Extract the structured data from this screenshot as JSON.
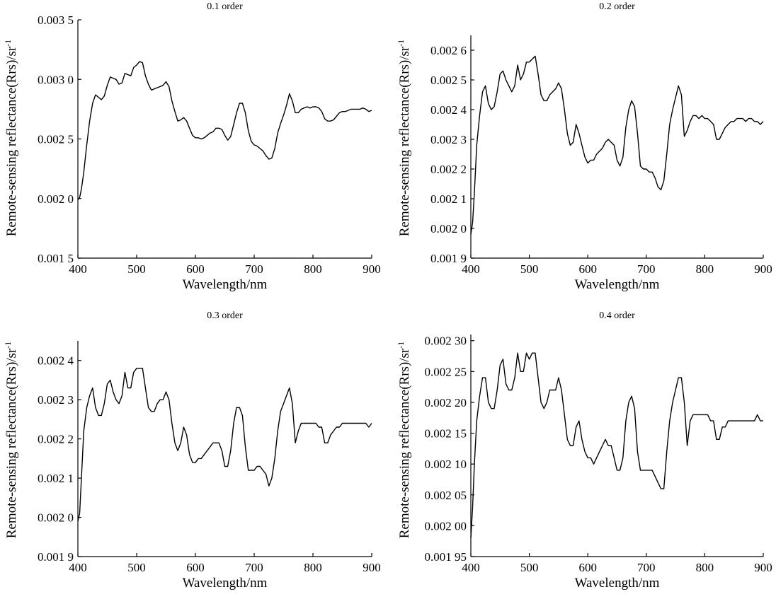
{
  "chart_data": [
    {
      "type": "line",
      "title": "0.1 order",
      "xlabel": "Wavelength/nm",
      "ylabel": "Remote-sensing reflectance(Rrs)/sr",
      "ylabel_sup": "-1",
      "xlim": [
        400,
        900
      ],
      "ylim": [
        0.0015,
        0.0035
      ],
      "xticks": [
        400,
        500,
        600,
        700,
        800,
        900
      ],
      "xtick_labels": [
        "400",
        "500",
        "600",
        "700",
        "800",
        "900"
      ],
      "yticks": [
        0.0015,
        0.002,
        0.0025,
        0.003,
        0.0035
      ],
      "ytick_labels": [
        "0.001 5",
        "0.002 0",
        "0.002 5",
        "0.003 0",
        "0.003 5"
      ],
      "grid": false,
      "series": [
        {
          "x": [
            400,
            403,
            406,
            410,
            415,
            420,
            425,
            430,
            435,
            440,
            445,
            450,
            455,
            460,
            465,
            470,
            475,
            480,
            485,
            490,
            495,
            500,
            505,
            510,
            515,
            520,
            525,
            530,
            535,
            540,
            545,
            550,
            555,
            560,
            565,
            570,
            575,
            580,
            585,
            590,
            595,
            600,
            605,
            610,
            615,
            620,
            625,
            630,
            635,
            640,
            645,
            650,
            655,
            660,
            665,
            670,
            675,
            680,
            685,
            690,
            695,
            700,
            705,
            710,
            715,
            720,
            725,
            730,
            735,
            740,
            745,
            750,
            755,
            760,
            765,
            770,
            775,
            780,
            785,
            790,
            795,
            800,
            805,
            810,
            815,
            820,
            825,
            830,
            835,
            840,
            845,
            850,
            855,
            860,
            865,
            870,
            875,
            880,
            885,
            890,
            895,
            900
          ],
          "y": [
            0.00199,
            0.00201,
            0.00208,
            0.00222,
            0.00245,
            0.00265,
            0.0028,
            0.00287,
            0.00285,
            0.00283,
            0.00286,
            0.00295,
            0.00302,
            0.00301,
            0.003,
            0.00296,
            0.00297,
            0.00305,
            0.00304,
            0.00303,
            0.0031,
            0.00312,
            0.00315,
            0.00314,
            0.00303,
            0.00296,
            0.00291,
            0.00292,
            0.00293,
            0.00294,
            0.00295,
            0.00298,
            0.00294,
            0.00282,
            0.00273,
            0.00265,
            0.00266,
            0.00268,
            0.00265,
            0.00259,
            0.00253,
            0.00251,
            0.00251,
            0.0025,
            0.00251,
            0.00253,
            0.00255,
            0.00256,
            0.00259,
            0.00259,
            0.00258,
            0.00253,
            0.00249,
            0.00252,
            0.00262,
            0.00272,
            0.0028,
            0.0028,
            0.00272,
            0.00257,
            0.00248,
            0.00245,
            0.00244,
            0.00242,
            0.0024,
            0.00236,
            0.00233,
            0.00234,
            0.00242,
            0.00255,
            0.00263,
            0.0027,
            0.00278,
            0.00288,
            0.00282,
            0.00272,
            0.00272,
            0.00275,
            0.00276,
            0.00277,
            0.00276,
            0.00277,
            0.00277,
            0.00276,
            0.00273,
            0.00267,
            0.00265,
            0.00265,
            0.00266,
            0.00269,
            0.00272,
            0.00273,
            0.00273,
            0.00274,
            0.00275,
            0.00275,
            0.00275,
            0.00275,
            0.00276,
            0.00275,
            0.00273,
            0.00274
          ]
        }
      ]
    },
    {
      "type": "line",
      "title": "0.2 order",
      "xlabel": "Wavelength/nm",
      "ylabel": "Remote-sensing reflectance(Rrs)/sr",
      "ylabel_sup": "-1",
      "xlim": [
        400,
        900
      ],
      "ylim": [
        0.0019,
        0.00265
      ],
      "xticks": [
        400,
        500,
        600,
        700,
        800,
        900
      ],
      "xtick_labels": [
        "400",
        "500",
        "600",
        "700",
        "800",
        "900"
      ],
      "yticks": [
        0.0019,
        0.002,
        0.0021,
        0.0022,
        0.0023,
        0.0024,
        0.0025,
        0.0026
      ],
      "ytick_labels": [
        "0.001 9",
        "0.002 0",
        "0.002 1",
        "0.002 2",
        "0.002 3",
        "0.002 4",
        "0.002 5",
        "0.002 6"
      ],
      "grid": false,
      "series": [
        {
          "x": [
            400,
            403,
            406,
            410,
            415,
            420,
            425,
            430,
            435,
            440,
            445,
            450,
            455,
            460,
            465,
            470,
            475,
            480,
            485,
            490,
            495,
            500,
            505,
            510,
            515,
            520,
            525,
            530,
            535,
            540,
            545,
            550,
            555,
            560,
            565,
            570,
            575,
            580,
            585,
            590,
            595,
            600,
            605,
            610,
            615,
            620,
            625,
            630,
            635,
            640,
            645,
            650,
            655,
            660,
            665,
            670,
            675,
            680,
            685,
            690,
            695,
            700,
            705,
            710,
            715,
            720,
            725,
            730,
            735,
            740,
            745,
            750,
            755,
            760,
            765,
            770,
            775,
            780,
            785,
            790,
            795,
            800,
            805,
            810,
            815,
            820,
            825,
            830,
            835,
            840,
            845,
            850,
            855,
            860,
            865,
            870,
            875,
            880,
            885,
            890,
            895,
            900
          ],
          "y": [
            0.00198,
            0.00202,
            0.00212,
            0.00228,
            0.00238,
            0.00246,
            0.00248,
            0.00242,
            0.0024,
            0.00241,
            0.00246,
            0.00252,
            0.00253,
            0.0025,
            0.00248,
            0.00246,
            0.00248,
            0.00255,
            0.0025,
            0.00252,
            0.00256,
            0.00256,
            0.00257,
            0.00258,
            0.00252,
            0.00245,
            0.00243,
            0.00243,
            0.00245,
            0.00246,
            0.00247,
            0.00249,
            0.00247,
            0.0024,
            0.00232,
            0.00228,
            0.00229,
            0.00235,
            0.00232,
            0.00228,
            0.00224,
            0.00222,
            0.00223,
            0.00223,
            0.00225,
            0.00226,
            0.00227,
            0.00229,
            0.0023,
            0.00229,
            0.00228,
            0.00223,
            0.00221,
            0.00224,
            0.00234,
            0.0024,
            0.00243,
            0.00241,
            0.00232,
            0.00221,
            0.0022,
            0.0022,
            0.00219,
            0.00219,
            0.00217,
            0.00214,
            0.00213,
            0.00216,
            0.00225,
            0.00235,
            0.0024,
            0.00244,
            0.00248,
            0.00245,
            0.00231,
            0.00233,
            0.00236,
            0.00238,
            0.00238,
            0.00237,
            0.00238,
            0.00237,
            0.00237,
            0.00236,
            0.00235,
            0.0023,
            0.0023,
            0.00232,
            0.00234,
            0.00235,
            0.00236,
            0.00236,
            0.00237,
            0.00237,
            0.00237,
            0.00236,
            0.00237,
            0.00237,
            0.00236,
            0.00236,
            0.00235,
            0.00236
          ]
        }
      ]
    },
    {
      "type": "line",
      "title": "0.3 order",
      "xlabel": "Wavelength/nm",
      "ylabel": "Remote-sensing reflectance(Rrs)/sr",
      "ylabel_sup": "-1",
      "xlim": [
        400,
        900
      ],
      "ylim": [
        0.0019,
        0.00245
      ],
      "xticks": [
        400,
        500,
        600,
        700,
        800,
        900
      ],
      "xtick_labels": [
        "400",
        "500",
        "600",
        "700",
        "800",
        "900"
      ],
      "yticks": [
        0.0019,
        0.002,
        0.0021,
        0.0022,
        0.0023,
        0.0024
      ],
      "ytick_labels": [
        "0.001 9",
        "0.002 0",
        "0.002 1",
        "0.002 2",
        "0.002 3",
        "0.002 4"
      ],
      "grid": false,
      "series": [
        {
          "x": [
            400,
            403,
            406,
            410,
            415,
            420,
            425,
            430,
            435,
            440,
            445,
            450,
            455,
            460,
            465,
            470,
            475,
            480,
            485,
            490,
            495,
            500,
            505,
            510,
            515,
            520,
            525,
            530,
            535,
            540,
            545,
            550,
            555,
            560,
            565,
            570,
            575,
            580,
            585,
            590,
            595,
            600,
            605,
            610,
            615,
            620,
            625,
            630,
            635,
            640,
            645,
            650,
            655,
            660,
            665,
            670,
            675,
            680,
            685,
            690,
            695,
            700,
            705,
            710,
            715,
            720,
            725,
            730,
            735,
            740,
            745,
            750,
            755,
            760,
            765,
            770,
            775,
            780,
            785,
            790,
            795,
            800,
            805,
            810,
            815,
            820,
            825,
            830,
            835,
            840,
            845,
            850,
            855,
            860,
            865,
            870,
            875,
            880,
            885,
            890,
            895,
            900
          ],
          "y": [
            0.00199,
            0.00201,
            0.0021,
            0.00222,
            0.00228,
            0.00231,
            0.00233,
            0.00228,
            0.00226,
            0.00226,
            0.00229,
            0.00234,
            0.00235,
            0.00232,
            0.0023,
            0.00229,
            0.00231,
            0.00237,
            0.00233,
            0.00233,
            0.00237,
            0.00238,
            0.00238,
            0.00238,
            0.00233,
            0.00228,
            0.00227,
            0.00227,
            0.00229,
            0.0023,
            0.0023,
            0.00232,
            0.0023,
            0.00224,
            0.00219,
            0.00217,
            0.00219,
            0.00223,
            0.00221,
            0.00216,
            0.00214,
            0.00214,
            0.00215,
            0.00215,
            0.00216,
            0.00217,
            0.00218,
            0.00219,
            0.00219,
            0.00219,
            0.00217,
            0.00213,
            0.00213,
            0.00217,
            0.00224,
            0.00228,
            0.00228,
            0.00226,
            0.00218,
            0.00212,
            0.00212,
            0.00212,
            0.00213,
            0.00213,
            0.00212,
            0.00211,
            0.00208,
            0.0021,
            0.00215,
            0.00222,
            0.00227,
            0.00229,
            0.00231,
            0.00233,
            0.00229,
            0.00219,
            0.00222,
            0.00224,
            0.00224,
            0.00224,
            0.00224,
            0.00224,
            0.00224,
            0.00223,
            0.00223,
            0.00219,
            0.00219,
            0.00221,
            0.00222,
            0.00223,
            0.00223,
            0.00224,
            0.00224,
            0.00224,
            0.00224,
            0.00224,
            0.00224,
            0.00224,
            0.00224,
            0.00224,
            0.00223,
            0.00224
          ]
        }
      ]
    },
    {
      "type": "line",
      "title": "0.4 order",
      "xlabel": "Wavelength/nm",
      "ylabel": "Remote-sensing reflectance(Rrs)/sr",
      "ylabel_sup": "-1",
      "xlim": [
        400,
        900
      ],
      "ylim": [
        0.00195,
        0.00231
      ],
      "xticks": [
        400,
        500,
        600,
        700,
        800,
        900
      ],
      "xtick_labels": [
        "400",
        "500",
        "600",
        "700",
        "800",
        "900"
      ],
      "yticks": [
        0.00195,
        0.002,
        0.00205,
        0.0021,
        0.00215,
        0.0022,
        0.00225,
        0.0023
      ],
      "ytick_labels": [
        "0.001 95",
        "0.002 00",
        "0.002 05",
        "0.002 10",
        "0.002 15",
        "0.002 20",
        "0.002 25",
        "0.002 30"
      ],
      "grid": false,
      "series": [
        {
          "x": [
            400,
            403,
            406,
            410,
            415,
            420,
            425,
            430,
            435,
            440,
            445,
            450,
            455,
            460,
            465,
            470,
            475,
            480,
            485,
            490,
            495,
            500,
            505,
            510,
            515,
            520,
            525,
            530,
            535,
            540,
            545,
            550,
            555,
            560,
            565,
            570,
            575,
            580,
            585,
            590,
            595,
            600,
            605,
            610,
            615,
            620,
            625,
            630,
            635,
            640,
            645,
            650,
            655,
            660,
            665,
            670,
            675,
            680,
            685,
            690,
            695,
            700,
            705,
            710,
            715,
            720,
            725,
            730,
            735,
            740,
            745,
            750,
            755,
            760,
            765,
            770,
            775,
            780,
            785,
            790,
            795,
            800,
            805,
            810,
            815,
            820,
            825,
            830,
            835,
            840,
            845,
            850,
            855,
            860,
            865,
            870,
            875,
            880,
            885,
            890,
            895,
            900
          ],
          "y": [
            0.00198,
            0.00203,
            0.0021,
            0.00217,
            0.00221,
            0.00224,
            0.00224,
            0.0022,
            0.00219,
            0.00219,
            0.00222,
            0.00226,
            0.00227,
            0.00223,
            0.00222,
            0.00222,
            0.00224,
            0.00228,
            0.00225,
            0.00225,
            0.00228,
            0.00227,
            0.00228,
            0.00228,
            0.00224,
            0.0022,
            0.00219,
            0.0022,
            0.00222,
            0.00222,
            0.00222,
            0.00224,
            0.00222,
            0.00218,
            0.00214,
            0.00213,
            0.00213,
            0.00216,
            0.00217,
            0.00214,
            0.00212,
            0.00211,
            0.00211,
            0.0021,
            0.00211,
            0.00212,
            0.00213,
            0.00214,
            0.00213,
            0.00213,
            0.00211,
            0.00209,
            0.00209,
            0.00211,
            0.00217,
            0.0022,
            0.00221,
            0.00219,
            0.00212,
            0.00209,
            0.00209,
            0.00209,
            0.00209,
            0.00209,
            0.00208,
            0.00207,
            0.00206,
            0.00206,
            0.00212,
            0.00217,
            0.0022,
            0.00222,
            0.00224,
            0.00224,
            0.0022,
            0.00213,
            0.00217,
            0.00218,
            0.00218,
            0.00218,
            0.00218,
            0.00218,
            0.00218,
            0.00217,
            0.00217,
            0.00214,
            0.00214,
            0.00216,
            0.00216,
            0.00217,
            0.00217,
            0.00217,
            0.00217,
            0.00217,
            0.00217,
            0.00217,
            0.00217,
            0.00217,
            0.00217,
            0.00218,
            0.00217,
            0.00217
          ]
        }
      ]
    }
  ]
}
